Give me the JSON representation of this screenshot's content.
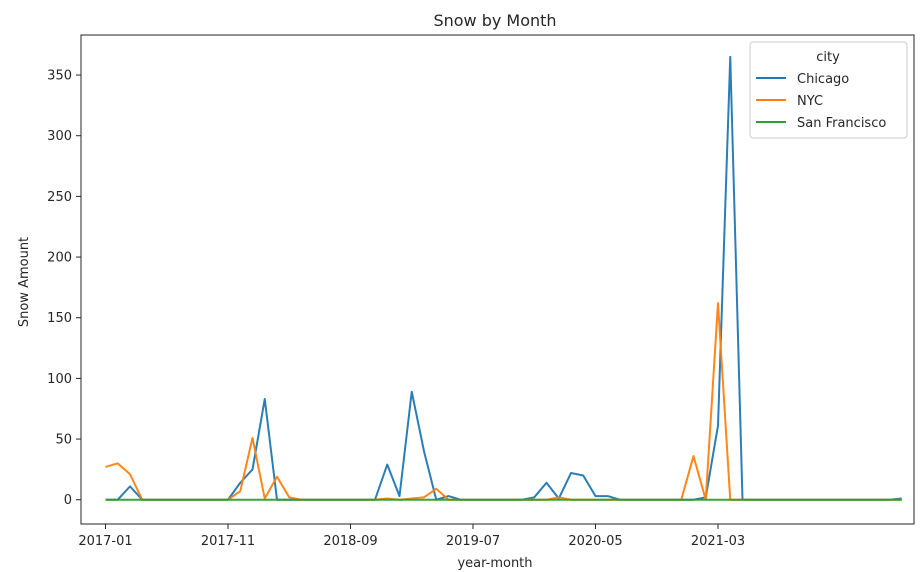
{
  "chart_data": {
    "type": "line",
    "title": "Snow by Month",
    "xlabel": "year-month",
    "ylabel": "Snow Amount",
    "x_ticks": [
      "2017-01",
      "2017-11",
      "2018-09",
      "2019-07",
      "2020-05",
      "2021-03"
    ],
    "y_ticks": [
      0,
      50,
      100,
      150,
      200,
      250,
      300,
      350
    ],
    "ylim": [
      -20,
      383
    ],
    "x_range": [
      "2016-11",
      "2022-07"
    ],
    "grid": false,
    "legend": {
      "title": "city",
      "placement": "top-right"
    },
    "x": [
      "2017-01",
      "2017-02",
      "2017-03",
      "2017-04",
      "2017-05",
      "2017-06",
      "2017-07",
      "2017-08",
      "2017-09",
      "2017-10",
      "2017-11",
      "2017-12",
      "2018-01",
      "2018-02",
      "2018-03",
      "2018-04",
      "2018-05",
      "2018-06",
      "2018-07",
      "2018-08",
      "2018-09",
      "2018-10",
      "2018-11",
      "2018-12",
      "2019-01",
      "2019-02",
      "2019-03",
      "2019-04",
      "2019-05",
      "2019-06",
      "2019-07",
      "2019-08",
      "2019-09",
      "2019-10",
      "2019-11",
      "2019-12",
      "2020-01",
      "2020-02",
      "2020-03",
      "2020-04",
      "2020-05",
      "2020-06",
      "2020-07",
      "2020-08",
      "2020-09",
      "2020-10",
      "2020-11",
      "2020-12",
      "2021-01",
      "2021-02",
      "2021-03",
      "2021-04",
      "2021-05",
      "2021-06",
      "2021-07",
      "2021-08",
      "2021-09",
      "2021-10",
      "2021-11",
      "2021-12",
      "2022-01",
      "2022-02",
      "2022-03",
      "2022-04",
      "2022-05",
      "2022-06"
    ],
    "series": [
      {
        "name": "Chicago",
        "color": "#1f77b4",
        "values": [
          0,
          0,
          11,
          0,
          0,
          0,
          0,
          0,
          0,
          0,
          0,
          14,
          25,
          83,
          0,
          0,
          0,
          0,
          0,
          0,
          0,
          0,
          0,
          29,
          3,
          89,
          40,
          0,
          3,
          0,
          0,
          0,
          0,
          0,
          0,
          2,
          14,
          1,
          22,
          20,
          3,
          3,
          0,
          0,
          0,
          0,
          0,
          0,
          0,
          2,
          61,
          365,
          0,
          0,
          0,
          0,
          0,
          0,
          0,
          0,
          0,
          0,
          0,
          0,
          0,
          1
        ]
      },
      {
        "name": "NYC",
        "color": "#ff7f0e",
        "values": [
          27,
          30,
          21,
          0,
          0,
          0,
          0,
          0,
          0,
          0,
          0,
          7,
          51,
          1,
          19,
          2,
          0,
          0,
          0,
          0,
          0,
          0,
          0,
          1,
          0,
          1,
          2,
          9,
          0,
          0,
          0,
          0,
          0,
          0,
          0,
          0,
          0,
          2,
          0,
          0,
          0,
          0,
          0,
          0,
          0,
          0,
          0,
          0,
          36,
          0,
          162,
          0,
          0,
          0,
          0,
          0,
          0,
          0,
          0,
          0,
          0,
          0,
          0,
          0,
          0,
          0
        ]
      },
      {
        "name": "San Francisco",
        "color": "#2ca02c",
        "values": [
          0,
          0,
          0,
          0,
          0,
          0,
          0,
          0,
          0,
          0,
          0,
          0,
          0,
          0,
          0,
          0,
          0,
          0,
          0,
          0,
          0,
          0,
          0,
          0,
          0,
          0,
          0,
          0,
          0,
          0,
          0,
          0,
          0,
          0,
          0,
          0,
          0,
          0,
          0,
          0,
          0,
          0,
          0,
          0,
          0,
          0,
          0,
          0,
          0,
          0,
          0,
          0,
          0,
          0,
          0,
          0,
          0,
          0,
          0,
          0,
          0,
          0,
          0,
          0,
          0,
          0
        ]
      }
    ]
  }
}
